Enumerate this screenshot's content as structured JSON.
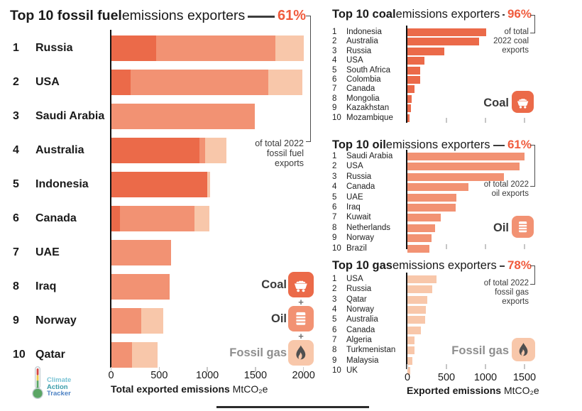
{
  "colors": {
    "coal": "#eb6a49",
    "oil": "#f29273",
    "gas": "#f8c7aa",
    "accent": "#f05b3d",
    "text": "#1a1a1a",
    "muted": "#8e8e8e"
  },
  "chart_data": [
    {
      "type": "bar",
      "stacked": true,
      "title_bold": "Top 10 fossil fuel",
      "title_rest": " emissions exporters",
      "share_pct": "61%",
      "annotation_lines": [
        "of total 2022",
        "fossil fuel",
        "exports"
      ],
      "ranks": [
        "1",
        "2",
        "3",
        "4",
        "5",
        "6",
        "7",
        "8",
        "9",
        "10"
      ],
      "categories": [
        "Russia",
        "USA",
        "Saudi Arabia",
        "Australia",
        "Indonesia",
        "Canada",
        "UAE",
        "Iraq",
        "Norway",
        "Qatar"
      ],
      "series": [
        {
          "name": "Coal",
          "values": [
            470,
            200,
            0,
            915,
            1000,
            90,
            0,
            0,
            0,
            0
          ]
        },
        {
          "name": "Oil",
          "values": [
            1240,
            1430,
            1490,
            60,
            0,
            775,
            620,
            605,
            310,
            215
          ]
        },
        {
          "name": "Fossil gas",
          "values": [
            290,
            355,
            0,
            225,
            30,
            155,
            0,
            0,
            230,
            270
          ]
        }
      ],
      "x_ticks": [
        0,
        500,
        1000,
        1500,
        2000
      ],
      "xlim": [
        0,
        2050
      ],
      "show_tick_labels": true,
      "xlabel_bold": "Total exported emissions",
      "xlabel_unit": "MtCO₂e"
    },
    {
      "type": "bar",
      "title_bold": "Top 10 coal",
      "title_rest": " emissions exporters",
      "share_pct": "96%",
      "annotation_lines": [
        "of total",
        "2022 coal",
        "exports"
      ],
      "legend_label": "Coal",
      "legend_icon": "minecart-icon",
      "ranks": [
        "1",
        "2",
        "3",
        "4",
        "5",
        "6",
        "7",
        "8",
        "9",
        "10"
      ],
      "categories": [
        "Indonesia",
        "Australia",
        "Russia",
        "USA",
        "South Africa",
        "Colombia",
        "Canada",
        "Mongolia",
        "Kazakhstan",
        "Mozambique"
      ],
      "values": [
        1010,
        920,
        470,
        215,
        165,
        160,
        95,
        55,
        45,
        30
      ],
      "x_ticks": [
        500,
        1000,
        1500
      ],
      "xlim": [
        0,
        1650
      ],
      "show_tick_labels": false
    },
    {
      "type": "bar",
      "title_bold": "Top 10 oil",
      "title_rest": " emissions exporters",
      "share_pct": "61%",
      "annotation_lines": [
        "of total 2022",
        "oil exports"
      ],
      "legend_label": "Oil",
      "legend_icon": "oil-barrel-icon",
      "ranks": [
        "1",
        "2",
        "3",
        "4",
        "5",
        "6",
        "7",
        "8",
        "9",
        "10"
      ],
      "categories": [
        "Saudi Arabia",
        "USA",
        "Russia",
        "Canada",
        "UAE",
        "Iraq",
        "Kuwait",
        "Netherlands",
        "Norway",
        "Brazil"
      ],
      "values": [
        1500,
        1435,
        1235,
        785,
        625,
        620,
        430,
        355,
        310,
        285
      ],
      "x_ticks": [
        500,
        1000,
        1500
      ],
      "xlim": [
        0,
        1650
      ],
      "show_tick_labels": false
    },
    {
      "type": "bar",
      "title_bold": "Top 10 gas",
      "title_rest": " emissions exporters",
      "share_pct": "78%",
      "annotation_lines": [
        "of total 2022",
        "fossil gas",
        "exports"
      ],
      "legend_label": "Fossil gas",
      "legend_icon": "flame-icon",
      "ranks": [
        "1",
        "2",
        "3",
        "4",
        "5",
        "6",
        "7",
        "8",
        "9",
        "10"
      ],
      "categories": [
        "USA",
        "Russia",
        "Qatar",
        "Norway",
        "Australia",
        "Canada",
        "Algeria",
        "Turkmenistan",
        "Malaysia",
        "UK"
      ],
      "values": [
        375,
        320,
        250,
        240,
        225,
        175,
        95,
        90,
        65,
        40
      ],
      "x_ticks": [
        0,
        500,
        1000,
        1500
      ],
      "xlim": [
        0,
        1650
      ],
      "show_tick_labels": true,
      "xlabel_bold": "Exported emissions",
      "xlabel_unit": "MtCO₂e"
    }
  ],
  "legend": {
    "plus": "+",
    "items": [
      {
        "label": "Coal",
        "icon": "minecart-icon",
        "type": "coal"
      },
      {
        "label": "Oil",
        "icon": "oil-barrel-icon",
        "type": "oil"
      },
      {
        "label": "Fossil gas",
        "icon": "flame-icon",
        "type": "gas"
      }
    ]
  },
  "logo": {
    "lines": [
      "Climate",
      "Action",
      "Tracker"
    ]
  }
}
